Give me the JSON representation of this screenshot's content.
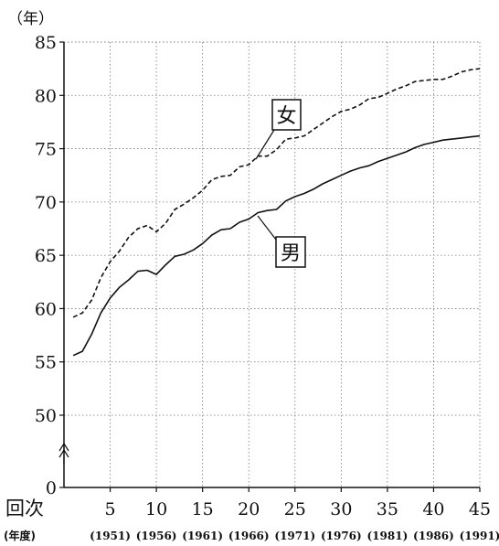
{
  "chart_data": {
    "type": "line",
    "ylabel": "（年）",
    "xlabel": "回次",
    "x_secondary_label": "(年度)",
    "ylim": [
      0,
      85
    ],
    "xlim": [
      0,
      45
    ],
    "y_axis_break": [
      0,
      50
    ],
    "y_ticks": [
      0,
      50,
      55,
      60,
      65,
      70,
      75,
      80,
      85
    ],
    "x_ticks": [
      5,
      10,
      15,
      20,
      25,
      30,
      35,
      40,
      45
    ],
    "x_secondary_ticks": [
      {
        "x": 5,
        "label": "(1951)"
      },
      {
        "x": 10,
        "label": "(1956)"
      },
      {
        "x": 15,
        "label": "(1961)"
      },
      {
        "x": 20,
        "label": "(1966)"
      },
      {
        "x": 25,
        "label": "(1971)"
      },
      {
        "x": 30,
        "label": "(1976)"
      },
      {
        "x": 35,
        "label": "(1981)"
      },
      {
        "x": 40,
        "label": "(1986)"
      },
      {
        "x": 45,
        "label": "(1991)"
      }
    ],
    "grid": true,
    "series": [
      {
        "name": "女",
        "style": "dashed",
        "color": "#111111",
        "x": [
          1,
          2,
          3,
          4,
          5,
          6,
          7,
          8,
          9,
          10,
          11,
          12,
          13,
          14,
          15,
          16,
          17,
          18,
          19,
          20,
          21,
          22,
          23,
          24,
          25,
          26,
          27,
          28,
          29,
          30,
          31,
          32,
          33,
          34,
          35,
          36,
          37,
          38,
          39,
          40,
          41,
          42,
          43,
          44,
          45
        ],
        "values": [
          59.2,
          59.6,
          60.8,
          62.9,
          64.4,
          65.4,
          66.7,
          67.5,
          67.8,
          67.2,
          68.0,
          69.3,
          69.8,
          70.4,
          71.1,
          72.1,
          72.4,
          72.5,
          73.3,
          73.5,
          74.3,
          74.3,
          74.9,
          75.9,
          76.0,
          76.2,
          76.8,
          77.4,
          78.0,
          78.5,
          78.7,
          79.1,
          79.7,
          79.8,
          80.2,
          80.6,
          80.9,
          81.3,
          81.4,
          81.5,
          81.5,
          81.8,
          82.2,
          82.4,
          82.5
        ]
      },
      {
        "name": "男",
        "style": "solid",
        "color": "#111111",
        "x": [
          1,
          2,
          3,
          4,
          5,
          6,
          7,
          8,
          9,
          10,
          11,
          12,
          13,
          14,
          15,
          16,
          17,
          18,
          19,
          20,
          21,
          22,
          23,
          24,
          25,
          26,
          27,
          28,
          29,
          30,
          31,
          32,
          33,
          34,
          35,
          36,
          37,
          38,
          39,
          40,
          41,
          42,
          43,
          44,
          45
        ],
        "values": [
          55.6,
          56.0,
          57.6,
          59.6,
          61.0,
          62.0,
          62.7,
          63.5,
          63.6,
          63.2,
          64.1,
          64.9,
          65.1,
          65.5,
          66.1,
          66.9,
          67.4,
          67.5,
          68.1,
          68.4,
          69.0,
          69.2,
          69.3,
          70.1,
          70.5,
          70.8,
          71.2,
          71.7,
          72.1,
          72.5,
          72.9,
          73.2,
          73.4,
          73.8,
          74.1,
          74.4,
          74.7,
          75.1,
          75.4,
          75.6,
          75.8,
          75.9,
          76.0,
          76.1,
          76.2
        ]
      }
    ]
  }
}
